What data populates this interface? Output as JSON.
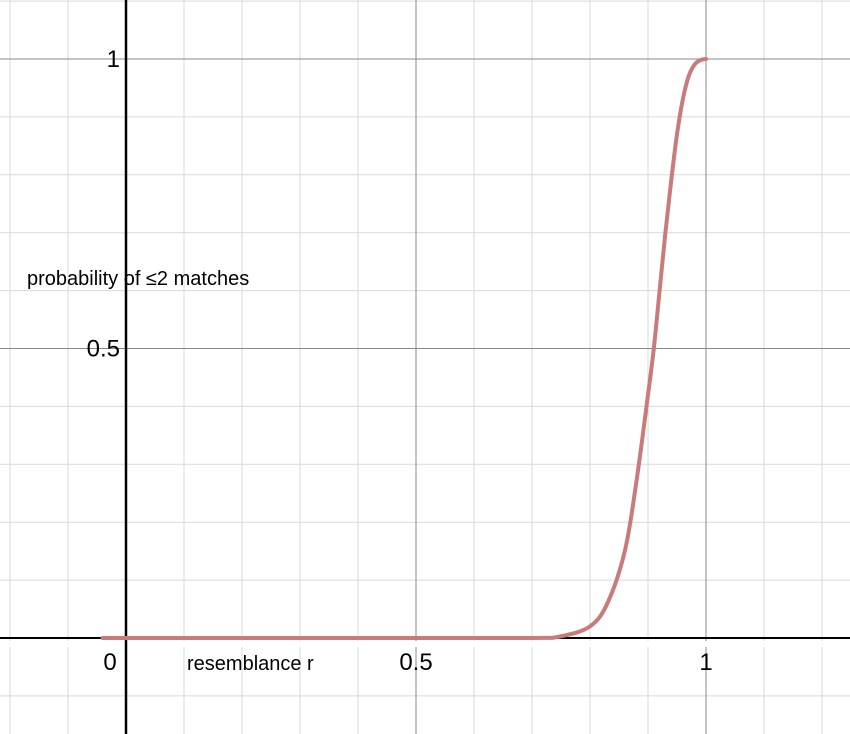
{
  "chart_data": {
    "type": "line",
    "title": "",
    "xlabel": "resemblance r",
    "ylabel": "probability of ≤2 matches",
    "xlim": [
      -0.2,
      1.25
    ],
    "ylim": [
      -0.16,
      1.1
    ],
    "grid": true,
    "x_ticks": [
      0,
      0.5,
      1
    ],
    "x_tick_labels": [
      "0",
      "0.5",
      "1"
    ],
    "y_ticks": [
      0.5,
      1
    ],
    "y_tick_labels": [
      "0.5",
      "1"
    ],
    "series": [
      {
        "color": "#c97b7b",
        "x": [
          0,
          0.5,
          0.7,
          0.75,
          0.8,
          0.83,
          0.86,
          0.88,
          0.9,
          0.91,
          0.92,
          0.93,
          0.94,
          0.95,
          0.96,
          0.97,
          0.98,
          0.99,
          1.0
        ],
        "y": [
          0,
          0,
          0,
          0.003,
          0.02,
          0.06,
          0.15,
          0.27,
          0.42,
          0.5,
          0.6,
          0.7,
          0.79,
          0.87,
          0.93,
          0.97,
          0.99,
          0.998,
          1.0
        ]
      }
    ]
  },
  "colors": {
    "background": "#ffffff",
    "grid_minor": "#d9d9d9",
    "grid_major": "#8a8a8a",
    "axis": "#000000",
    "curve": "#c97b7b"
  }
}
